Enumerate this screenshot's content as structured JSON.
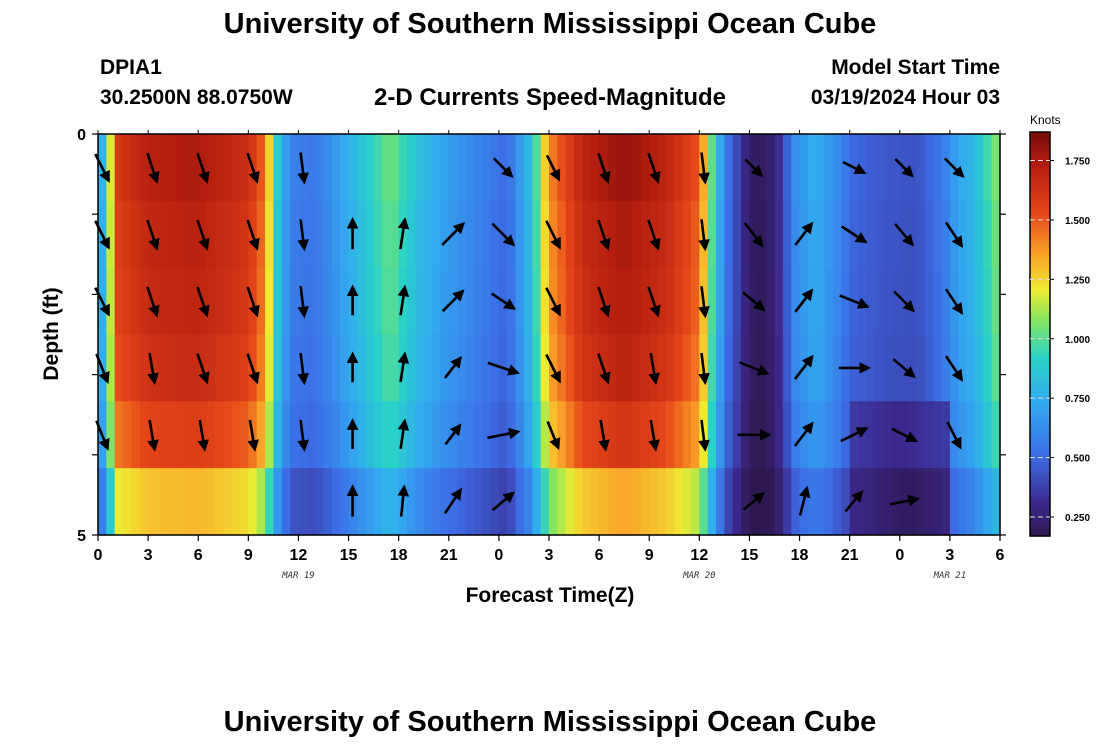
{
  "header": {
    "title": "University of Southern Mississippi Ocean Cube",
    "station": "DPIA1",
    "coords": "30.2500N  88.0750W",
    "subtitle": "2-D Currents Speed-Magnitude",
    "model_start_label": "Model Start Time",
    "model_start": "03/19/2024 Hour 03"
  },
  "footer": {
    "title": "University of Southern Mississippi Ocean Cube"
  },
  "colorbar": {
    "unit": "Knots",
    "ticks": [
      "1.750",
      "1.500",
      "1.250",
      "1.000",
      "0.750",
      "0.500",
      "0.250"
    ],
    "tick_values": [
      1.75,
      1.5,
      1.25,
      1.0,
      0.75,
      0.5,
      0.25
    ],
    "range": [
      0.17,
      1.87
    ]
  },
  "chart_data": {
    "type": "heatmap",
    "xlabel": "Forecast Time(Z)",
    "ylabel": "Depth (ft)",
    "ylim": [
      0,
      5
    ],
    "y_ticks": [
      "0",
      "5"
    ],
    "x_ticks": [
      "0",
      "3",
      "6",
      "9",
      "12",
      "15",
      "18",
      "21",
      "0",
      "3",
      "6",
      "9",
      "12",
      "15",
      "18",
      "21",
      "0",
      "3",
      "6"
    ],
    "date_labels": [
      {
        "label": "MAR 19",
        "hour": 12
      },
      {
        "label": "MAR 20",
        "hour": 36
      },
      {
        "label": "MAR 21",
        "hour": 51
      }
    ],
    "hours_range": [
      0,
      54
    ],
    "depth_layers": 6,
    "speed_profile": [
      [
        0,
        0.6
      ],
      [
        0.5,
        0.95
      ],
      [
        1.2,
        1.6
      ],
      [
        3,
        1.72
      ],
      [
        6,
        1.75
      ],
      [
        9,
        1.65
      ],
      [
        10,
        1.45
      ],
      [
        10.7,
        0.9
      ],
      [
        11.5,
        0.58
      ],
      [
        13,
        0.55
      ],
      [
        14.5,
        0.7
      ],
      [
        17.5,
        1.05
      ],
      [
        19,
        0.85
      ],
      [
        20.5,
        0.72
      ],
      [
        23,
        0.58
      ],
      [
        24.5,
        0.5
      ],
      [
        26,
        0.85
      ],
      [
        27,
        1.4
      ],
      [
        29,
        1.7
      ],
      [
        31.5,
        1.8
      ],
      [
        34,
        1.7
      ],
      [
        36,
        1.5
      ],
      [
        37,
        0.85
      ],
      [
        37.6,
        0.55
      ],
      [
        38.5,
        0.35
      ],
      [
        39,
        0.22
      ],
      [
        40,
        0.2
      ],
      [
        40.8,
        0.33
      ],
      [
        41.8,
        0.65
      ],
      [
        43,
        0.75
      ],
      [
        44.5,
        0.6
      ],
      [
        45,
        0.5
      ],
      [
        47,
        0.45
      ],
      [
        49,
        0.43
      ],
      [
        50.5,
        0.55
      ],
      [
        51.5,
        0.72
      ],
      [
        52.5,
        0.8
      ],
      [
        53.2,
        0.95
      ],
      [
        54,
        1.1
      ]
    ],
    "layer_factor": [
      1.0,
      0.98,
      0.97,
      0.95,
      0.9,
      0.75
    ],
    "vectors": [
      {
        "hour": 0,
        "row": 0,
        "dx": 1,
        "dy": 2,
        "len": 1.0
      },
      {
        "hour": 3,
        "row": 0,
        "dx": 1,
        "dy": 3,
        "len": 1.0
      },
      {
        "hour": 6,
        "row": 0,
        "dx": 1,
        "dy": 3,
        "len": 1.0
      },
      {
        "hour": 9,
        "row": 0,
        "dx": 1,
        "dy": 3,
        "len": 1.0
      },
      {
        "hour": 12,
        "row": 0,
        "dx": 0.5,
        "dy": 4,
        "len": 1.0
      },
      {
        "hour": 24,
        "row": 0,
        "dx": 1,
        "dy": 1,
        "len": 0.85
      },
      {
        "hour": 27,
        "row": 0,
        "dx": 1,
        "dy": 2,
        "len": 0.9
      },
      {
        "hour": 30,
        "row": 0,
        "dx": 1,
        "dy": 3,
        "len": 1.0
      },
      {
        "hour": 33,
        "row": 0,
        "dx": 1,
        "dy": 3,
        "len": 1.0
      },
      {
        "hour": 36,
        "row": 0,
        "dx": 0.5,
        "dy": 4,
        "len": 1.0
      },
      {
        "hour": 39,
        "row": 0,
        "dx": 1,
        "dy": 1,
        "len": 0.75
      },
      {
        "hour": 45,
        "row": 0,
        "dx": 2,
        "dy": 1,
        "len": 0.8
      },
      {
        "hour": 48,
        "row": 0,
        "dx": 1,
        "dy": 1,
        "len": 0.8
      },
      {
        "hour": 51,
        "row": 0,
        "dx": 1,
        "dy": 1,
        "len": 0.85
      },
      {
        "hour": 0,
        "row": 1,
        "dx": 1,
        "dy": 2,
        "len": 1.0
      },
      {
        "hour": 3,
        "row": 1,
        "dx": 1,
        "dy": 3,
        "len": 1.0
      },
      {
        "hour": 6,
        "row": 1,
        "dx": 1,
        "dy": 3,
        "len": 1.0
      },
      {
        "hour": 9,
        "row": 1,
        "dx": 1,
        "dy": 3,
        "len": 1.0
      },
      {
        "hour": 12,
        "row": 1,
        "dx": 0.5,
        "dy": 4,
        "len": 1.0
      },
      {
        "hour": 15,
        "row": 1,
        "dx": 0,
        "dy": -1,
        "len": 1.0
      },
      {
        "hour": 18,
        "row": 1,
        "dx": 0.3,
        "dy": -2,
        "len": 1.0
      },
      {
        "hour": 21,
        "row": 1,
        "dx": 1,
        "dy": -1,
        "len": 1.0
      },
      {
        "hour": 24,
        "row": 1,
        "dx": 1,
        "dy": 1,
        "len": 1.0
      },
      {
        "hour": 27,
        "row": 1,
        "dx": 1,
        "dy": 2,
        "len": 1.0
      },
      {
        "hour": 30,
        "row": 1,
        "dx": 1,
        "dy": 3,
        "len": 1.0
      },
      {
        "hour": 33,
        "row": 1,
        "dx": 1,
        "dy": 3,
        "len": 1.0
      },
      {
        "hour": 36,
        "row": 1,
        "dx": 0.5,
        "dy": 4,
        "len": 1.0
      },
      {
        "hour": 39,
        "row": 1,
        "dx": 1,
        "dy": 1.3,
        "len": 0.95
      },
      {
        "hour": 42,
        "row": 1,
        "dx": 1,
        "dy": -1.3,
        "len": 0.9
      },
      {
        "hour": 45,
        "row": 1,
        "dx": 2,
        "dy": 1.3,
        "len": 0.95
      },
      {
        "hour": 48,
        "row": 1,
        "dx": 1,
        "dy": 1.2,
        "len": 0.9
      },
      {
        "hour": 51,
        "row": 1,
        "dx": 1,
        "dy": 1.5,
        "len": 0.95
      },
      {
        "hour": 0,
        "row": 2,
        "dx": 1,
        "dy": 2,
        "len": 1.0
      },
      {
        "hour": 3,
        "row": 2,
        "dx": 1,
        "dy": 3,
        "len": 1.0
      },
      {
        "hour": 6,
        "row": 2,
        "dx": 1,
        "dy": 3,
        "len": 1.0
      },
      {
        "hour": 9,
        "row": 2,
        "dx": 1,
        "dy": 3,
        "len": 1.0
      },
      {
        "hour": 12,
        "row": 2,
        "dx": 0.5,
        "dy": 4,
        "len": 1.0
      },
      {
        "hour": 15,
        "row": 2,
        "dx": 0,
        "dy": -1,
        "len": 0.95
      },
      {
        "hour": 18,
        "row": 2,
        "dx": 0.3,
        "dy": -2,
        "len": 0.95
      },
      {
        "hour": 21,
        "row": 2,
        "dx": 1,
        "dy": -1,
        "len": 0.95
      },
      {
        "hour": 24,
        "row": 2,
        "dx": 1.5,
        "dy": 1,
        "len": 0.9
      },
      {
        "hour": 27,
        "row": 2,
        "dx": 1,
        "dy": 2,
        "len": 1.0
      },
      {
        "hour": 30,
        "row": 2,
        "dx": 1,
        "dy": 3,
        "len": 1.0
      },
      {
        "hour": 33,
        "row": 2,
        "dx": 1,
        "dy": 3,
        "len": 1.0
      },
      {
        "hour": 36,
        "row": 2,
        "dx": 0.5,
        "dy": 4,
        "len": 1.0
      },
      {
        "hour": 39,
        "row": 2,
        "dx": 1.2,
        "dy": 1,
        "len": 0.9
      },
      {
        "hour": 42,
        "row": 2,
        "dx": 1,
        "dy": -1.3,
        "len": 0.9
      },
      {
        "hour": 45,
        "row": 2,
        "dx": 2.5,
        "dy": 1,
        "len": 1.0
      },
      {
        "hour": 48,
        "row": 2,
        "dx": 1,
        "dy": 1,
        "len": 0.9
      },
      {
        "hour": 51,
        "row": 2,
        "dx": 1,
        "dy": 1.5,
        "len": 0.95
      },
      {
        "hour": 0,
        "row": 3,
        "dx": 1,
        "dy": 2.5,
        "len": 1.0
      },
      {
        "hour": 3,
        "row": 3,
        "dx": 0.5,
        "dy": 3,
        "len": 1.0
      },
      {
        "hour": 6,
        "row": 3,
        "dx": 1,
        "dy": 3,
        "len": 1.0
      },
      {
        "hour": 9,
        "row": 3,
        "dx": 1,
        "dy": 3,
        "len": 1.0
      },
      {
        "hour": 12,
        "row": 3,
        "dx": 0.5,
        "dy": 4,
        "len": 1.0
      },
      {
        "hour": 15,
        "row": 3,
        "dx": 0,
        "dy": -1,
        "len": 0.95
      },
      {
        "hour": 18,
        "row": 3,
        "dx": 0.3,
        "dy": -2,
        "len": 0.95
      },
      {
        "hour": 21,
        "row": 3,
        "dx": 1,
        "dy": -1.3,
        "len": 0.85
      },
      {
        "hour": 24,
        "row": 3,
        "dx": 3,
        "dy": 1,
        "len": 1.05
      },
      {
        "hour": 27,
        "row": 3,
        "dx": 1,
        "dy": 2,
        "len": 1.0
      },
      {
        "hour": 30,
        "row": 3,
        "dx": 1,
        "dy": 3,
        "len": 1.0
      },
      {
        "hour": 33,
        "row": 3,
        "dx": 0.5,
        "dy": 3,
        "len": 1.0
      },
      {
        "hour": 36,
        "row": 3,
        "dx": 0.5,
        "dy": 4,
        "len": 1.0
      },
      {
        "hour": 39,
        "row": 3,
        "dx": 2.5,
        "dy": 1,
        "len": 1.0
      },
      {
        "hour": 42,
        "row": 3,
        "dx": 1,
        "dy": -1.3,
        "len": 0.95
      },
      {
        "hour": 45,
        "row": 3,
        "dx": 1,
        "dy": 0,
        "len": 1.0
      },
      {
        "hour": 48,
        "row": 3,
        "dx": 1.2,
        "dy": 1,
        "len": 0.9
      },
      {
        "hour": 51,
        "row": 3,
        "dx": 1,
        "dy": 1.5,
        "len": 0.95
      },
      {
        "hour": 0,
        "row": 4,
        "dx": 1,
        "dy": 2.5,
        "len": 1.0
      },
      {
        "hour": 3,
        "row": 4,
        "dx": 0.5,
        "dy": 3,
        "len": 1.0
      },
      {
        "hour": 6,
        "row": 4,
        "dx": 0.5,
        "dy": 3,
        "len": 1.0
      },
      {
        "hour": 9,
        "row": 4,
        "dx": 0.5,
        "dy": 3,
        "len": 1.0
      },
      {
        "hour": 12,
        "row": 4,
        "dx": 0.5,
        "dy": 4,
        "len": 1.0
      },
      {
        "hour": 15,
        "row": 4,
        "dx": 0,
        "dy": -1,
        "len": 0.95
      },
      {
        "hour": 18,
        "row": 4,
        "dx": 0.3,
        "dy": -2,
        "len": 0.95
      },
      {
        "hour": 21,
        "row": 4,
        "dx": 1,
        "dy": -1.3,
        "len": 0.8
      },
      {
        "hour": 24,
        "row": 4,
        "dx": 5,
        "dy": -1,
        "len": 1.05
      },
      {
        "hour": 27,
        "row": 4,
        "dx": 1,
        "dy": 2.5,
        "len": 0.95
      },
      {
        "hour": 30,
        "row": 4,
        "dx": 0.5,
        "dy": 3,
        "len": 1.0
      },
      {
        "hour": 33,
        "row": 4,
        "dx": 0.5,
        "dy": 3,
        "len": 1.0
      },
      {
        "hour": 36,
        "row": 4,
        "dx": 0.5,
        "dy": 4,
        "len": 1.0
      },
      {
        "hour": 39,
        "row": 4,
        "dx": 1,
        "dy": 0,
        "len": 1.05
      },
      {
        "hour": 42,
        "row": 4,
        "dx": 1,
        "dy": -1.3,
        "len": 0.95
      },
      {
        "hour": 45,
        "row": 4,
        "dx": 2,
        "dy": -1,
        "len": 0.95
      },
      {
        "hour": 48,
        "row": 4,
        "dx": 2,
        "dy": 1,
        "len": 0.9
      },
      {
        "hour": 51,
        "row": 4,
        "dx": 1,
        "dy": 2,
        "len": 0.95
      },
      {
        "hour": 15,
        "row": 5,
        "dx": 0,
        "dy": -1,
        "len": 1.0
      },
      {
        "hour": 18,
        "row": 5,
        "dx": 0.2,
        "dy": -2,
        "len": 1.0
      },
      {
        "hour": 21,
        "row": 5,
        "dx": 1,
        "dy": -1.5,
        "len": 0.95
      },
      {
        "hour": 24,
        "row": 5,
        "dx": 1.2,
        "dy": -1,
        "len": 0.9
      },
      {
        "hour": 39,
        "row": 5,
        "dx": 1.2,
        "dy": -1,
        "len": 0.85
      },
      {
        "hour": 42,
        "row": 5,
        "dx": 0.5,
        "dy": -2,
        "len": 0.95
      },
      {
        "hour": 45,
        "row": 5,
        "dx": 1,
        "dy": -1.2,
        "len": 0.85
      },
      {
        "hour": 48,
        "row": 5,
        "dx": 5,
        "dy": -1,
        "len": 0.95
      }
    ]
  }
}
